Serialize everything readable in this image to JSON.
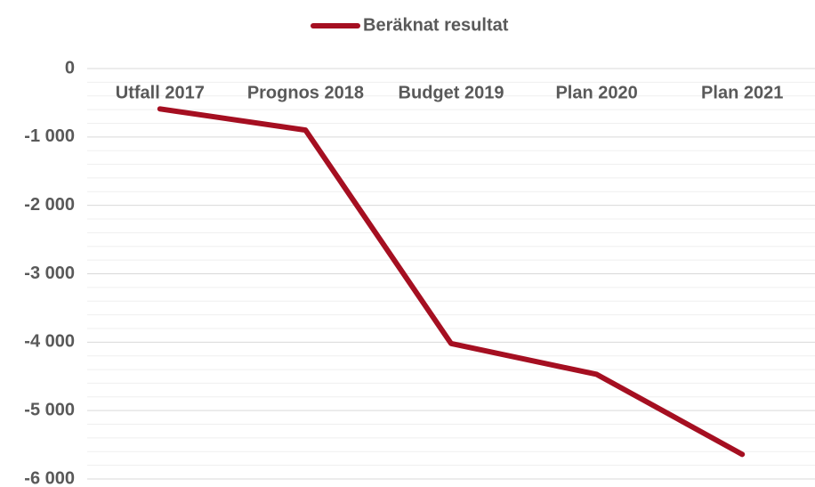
{
  "chart_data": {
    "type": "line",
    "categories": [
      "Utfall 2017",
      "Prognos 2018",
      "Budget 2019",
      "Plan 2020",
      "Plan 2021"
    ],
    "series": [
      {
        "name": "Beräknat resultat",
        "color": "#a50f21",
        "values": [
          -590,
          -900,
          -4020,
          -4470,
          -5640
        ]
      }
    ],
    "ylim": [
      -6000,
      0
    ],
    "yticks": [
      {
        "value": -6000,
        "label": "-6 000"
      },
      {
        "value": -5000,
        "label": "-5 000"
      },
      {
        "value": -4000,
        "label": "-4 000"
      },
      {
        "value": -3000,
        "label": "-3 000"
      },
      {
        "value": -2000,
        "label": "-2 000"
      },
      {
        "value": -1000,
        "label": "-1 000"
      },
      0
    ],
    "grid": true,
    "minor_grid": true,
    "legend": "top"
  }
}
